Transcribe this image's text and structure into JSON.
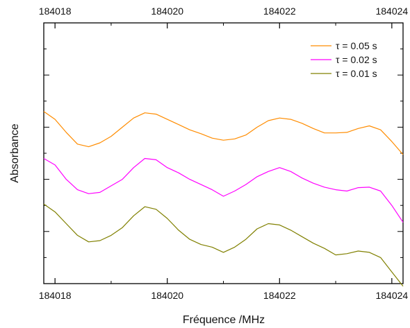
{
  "chart_data": {
    "type": "line",
    "title": "",
    "xlabel": "Fréquence /MHz",
    "ylabel": "Absorbance",
    "xlim": [
      184017.8,
      184024.2
    ],
    "ylim": [
      0,
      1
    ],
    "x_ticks": [
      "184018",
      "184020",
      "184022",
      "184024"
    ],
    "x_tick_values": [
      184018,
      184020,
      184022,
      184024
    ],
    "y_tick_labels_shown": false,
    "grid": false,
    "legend_position": "top-right",
    "series": [
      {
        "name": "τ = 0.05 s",
        "color": "#ff8c00",
        "points": [
          [
            184017.8,
            0.66
          ],
          [
            184018.0,
            0.63
          ],
          [
            184018.2,
            0.58
          ],
          [
            184018.4,
            0.535
          ],
          [
            184018.6,
            0.525
          ],
          [
            184018.8,
            0.54
          ],
          [
            184019.0,
            0.565
          ],
          [
            184019.2,
            0.6
          ],
          [
            184019.4,
            0.635
          ],
          [
            184019.6,
            0.655
          ],
          [
            184019.8,
            0.65
          ],
          [
            184020.0,
            0.63
          ],
          [
            184020.2,
            0.61
          ],
          [
            184020.4,
            0.59
          ],
          [
            184020.6,
            0.575
          ],
          [
            184020.8,
            0.558
          ],
          [
            184021.0,
            0.55
          ],
          [
            184021.2,
            0.555
          ],
          [
            184021.4,
            0.57
          ],
          [
            184021.6,
            0.6
          ],
          [
            184021.8,
            0.625
          ],
          [
            184022.0,
            0.635
          ],
          [
            184022.2,
            0.63
          ],
          [
            184022.4,
            0.615
          ],
          [
            184022.6,
            0.595
          ],
          [
            184022.8,
            0.578
          ],
          [
            184023.0,
            0.578
          ],
          [
            184023.2,
            0.58
          ],
          [
            184023.4,
            0.595
          ],
          [
            184023.6,
            0.605
          ],
          [
            184023.8,
            0.59
          ],
          [
            184024.0,
            0.545
          ],
          [
            184024.2,
            0.495
          ]
        ]
      },
      {
        "name": "τ = 0.02 s",
        "color": "#ff00ff",
        "points": [
          [
            184017.8,
            0.48
          ],
          [
            184018.0,
            0.455
          ],
          [
            184018.2,
            0.4
          ],
          [
            184018.4,
            0.36
          ],
          [
            184018.6,
            0.345
          ],
          [
            184018.8,
            0.35
          ],
          [
            184019.0,
            0.375
          ],
          [
            184019.2,
            0.4
          ],
          [
            184019.4,
            0.445
          ],
          [
            184019.6,
            0.48
          ],
          [
            184019.8,
            0.475
          ],
          [
            184020.0,
            0.445
          ],
          [
            184020.2,
            0.425
          ],
          [
            184020.4,
            0.4
          ],
          [
            184020.6,
            0.38
          ],
          [
            184020.8,
            0.36
          ],
          [
            184021.0,
            0.335
          ],
          [
            184021.2,
            0.355
          ],
          [
            184021.4,
            0.38
          ],
          [
            184021.6,
            0.41
          ],
          [
            184021.8,
            0.43
          ],
          [
            184022.0,
            0.445
          ],
          [
            184022.2,
            0.43
          ],
          [
            184022.4,
            0.405
          ],
          [
            184022.6,
            0.385
          ],
          [
            184022.8,
            0.37
          ],
          [
            184023.0,
            0.36
          ],
          [
            184023.2,
            0.355
          ],
          [
            184023.4,
            0.368
          ],
          [
            184023.6,
            0.37
          ],
          [
            184023.8,
            0.355
          ],
          [
            184024.0,
            0.3
          ],
          [
            184024.2,
            0.235
          ]
        ]
      },
      {
        "name": "τ = 0.01 s",
        "color": "#808000",
        "points": [
          [
            184017.8,
            0.305
          ],
          [
            184018.0,
            0.275
          ],
          [
            184018.2,
            0.23
          ],
          [
            184018.4,
            0.185
          ],
          [
            184018.6,
            0.16
          ],
          [
            184018.8,
            0.165
          ],
          [
            184019.0,
            0.185
          ],
          [
            184019.2,
            0.215
          ],
          [
            184019.4,
            0.26
          ],
          [
            184019.6,
            0.295
          ],
          [
            184019.8,
            0.285
          ],
          [
            184020.0,
            0.25
          ],
          [
            184020.2,
            0.205
          ],
          [
            184020.4,
            0.17
          ],
          [
            184020.6,
            0.15
          ],
          [
            184020.8,
            0.14
          ],
          [
            184021.0,
            0.12
          ],
          [
            184021.2,
            0.14
          ],
          [
            184021.4,
            0.17
          ],
          [
            184021.6,
            0.21
          ],
          [
            184021.8,
            0.23
          ],
          [
            184022.0,
            0.225
          ],
          [
            184022.2,
            0.205
          ],
          [
            184022.4,
            0.18
          ],
          [
            184022.6,
            0.155
          ],
          [
            184022.8,
            0.135
          ],
          [
            184023.0,
            0.11
          ],
          [
            184023.2,
            0.115
          ],
          [
            184023.4,
            0.125
          ],
          [
            184023.6,
            0.12
          ],
          [
            184023.8,
            0.1
          ],
          [
            184024.0,
            0.045
          ],
          [
            184024.2,
            -0.01
          ]
        ]
      }
    ]
  }
}
